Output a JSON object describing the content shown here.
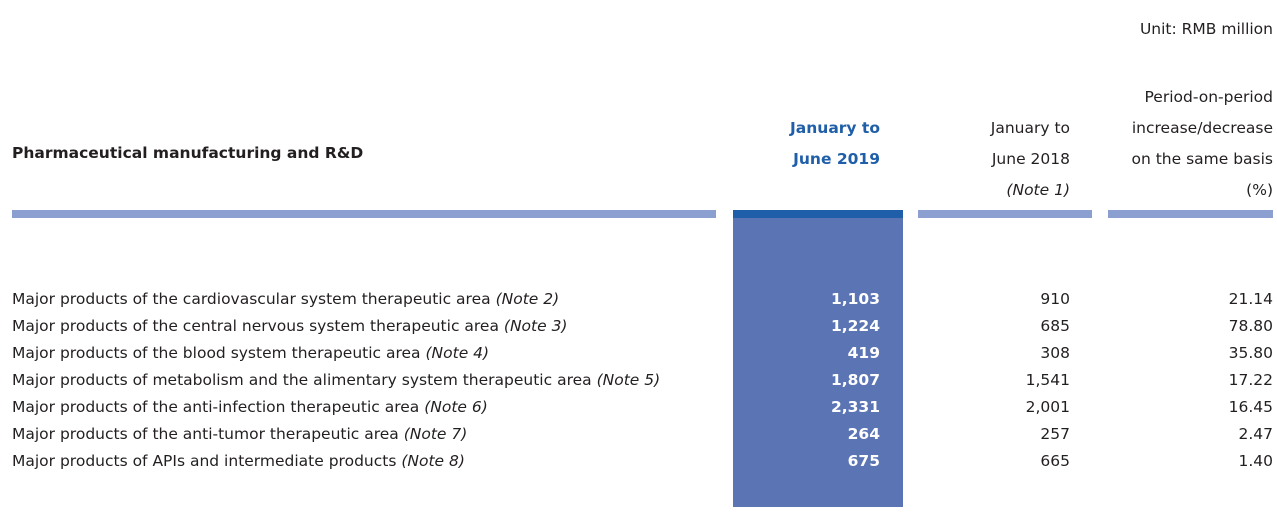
{
  "header": {
    "unit": "Unit: RMB million",
    "section_title": "Pharmaceutical manufacturing and R&D",
    "col1": [
      "January to",
      "June 2019"
    ],
    "col2": [
      "January to",
      "June 2018",
      "(Note 1)"
    ],
    "col3": [
      "Period-on-period",
      "increase/decrease",
      "on the same basis",
      "(%)"
    ]
  },
  "table": {
    "rows": [
      {
        "label": "Major products of the cardiovascular system therapeutic area",
        "note": "(Note 2)",
        "values": [
          "1,103",
          "910",
          "21.14"
        ]
      },
      {
        "label": "Major products of the central nervous system therapeutic area",
        "note": "(Note 3)",
        "values": [
          "1,224",
          "685",
          "78.80"
        ]
      },
      {
        "label": "Major products of the blood system therapeutic area",
        "note": "(Note 4)",
        "values": [
          "419",
          "308",
          "35.80"
        ]
      },
      {
        "label": "Major products of metabolism and the alimentary system therapeutic area",
        "note": "(Note 5)",
        "values": [
          "1,807",
          "1,541",
          "17.22"
        ]
      },
      {
        "label": "Major products of the anti-infection therapeutic area",
        "note": "(Note 6)",
        "values": [
          "2,331",
          "2,001",
          "16.45"
        ]
      },
      {
        "label": "Major products of the anti-tumor therapeutic area",
        "note": "(Note 7)",
        "values": [
          "264",
          "257",
          "2.47"
        ]
      },
      {
        "label": "Major products of APIs and intermediate products",
        "note": "(Note 8)",
        "values": [
          "675",
          "665",
          "1.40"
        ]
      }
    ]
  }
}
